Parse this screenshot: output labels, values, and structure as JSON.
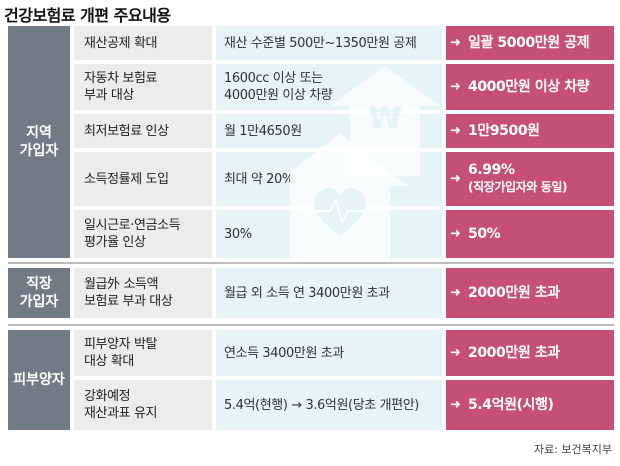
{
  "title": "건강보험료 개편 주요내용",
  "source": "자료: 보건복지부",
  "groups": [
    {
      "label_lines": [
        "지역",
        "가입자"
      ],
      "rows": [
        {
          "item": [
            "재산공제 확대"
          ],
          "current": [
            "재산 수준별 500만~1350만원 공제"
          ],
          "change": [
            "일괄 5000만원 공제"
          ]
        },
        {
          "item": [
            "자동차 보험료",
            "부과 대상"
          ],
          "current": [
            "1600cc 이상 또는",
            "4000만원 이상 차량"
          ],
          "change": [
            "4000만원 이상 차량"
          ]
        },
        {
          "item": [
            "최저보험료 인상"
          ],
          "current": [
            "월 1만4650원"
          ],
          "change": [
            "1만9500원"
          ]
        },
        {
          "item": [
            "소득정률제 도입"
          ],
          "current": [
            "최대 약 20%"
          ],
          "change": [
            "6.99%"
          ],
          "change_sub": "(직장가입자와 동일)"
        },
        {
          "item": [
            "일시근로·연금소득",
            "평가율 인상"
          ],
          "current": [
            "30%"
          ],
          "change": [
            "50%"
          ]
        }
      ]
    },
    {
      "label_lines": [
        "직장",
        "가입자"
      ],
      "rows": [
        {
          "item": [
            "월급外 소득액",
            "보험료 부과 대상"
          ],
          "current": [
            "월급 외 소득 연 3400만원 초과"
          ],
          "change": [
            "2000만원 초과"
          ]
        }
      ]
    },
    {
      "label_lines": [
        "피부양자"
      ],
      "rows": [
        {
          "item": [
            "피부양자 박탈",
            "대상 확대"
          ],
          "current": [
            "연소득 3400만원 초과"
          ],
          "change": [
            "2000만원 초과"
          ]
        },
        {
          "item": [
            "강화예정",
            "재산과표 유지"
          ],
          "current": [
            "5.4억(현행) → 3.6억원(당초 개편안)"
          ],
          "change": [
            "5.4억원(시행)"
          ]
        }
      ]
    }
  ],
  "icons": {
    "arrow": "right-arrow-icon",
    "house": "house-heart-icon",
    "won_arrow": "won-up-arrow-icon"
  }
}
